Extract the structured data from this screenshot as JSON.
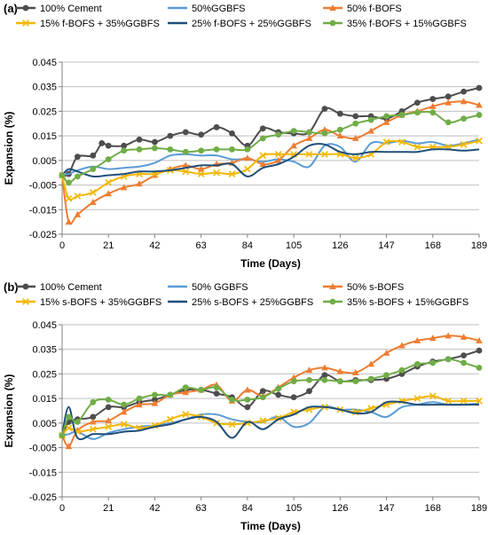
{
  "chart_data": [
    {
      "type": "line",
      "panel_label": "(a)",
      "xlabel": "Time (Days)",
      "ylabel": "Expansion (%)",
      "xlim": [
        0,
        189
      ],
      "ylim": [
        -0.025,
        0.045
      ],
      "xticks": [
        "0",
        "21",
        "42",
        "63",
        "84",
        "105",
        "126",
        "147",
        "168",
        "189"
      ],
      "yticks": [
        "-0.025",
        "-0.015",
        "-0.005",
        "0.005",
        "0.015",
        "0.025",
        "0.035",
        "0.045"
      ],
      "grid": true,
      "legend": "top",
      "series": [
        {
          "name": "100% Cement",
          "color": "#4d4d4d",
          "marker": "circle",
          "x": [
            0,
            3,
            7,
            14,
            18,
            21,
            28,
            35,
            42,
            49,
            56,
            63,
            70,
            77,
            84,
            91,
            98,
            105,
            112,
            119,
            126,
            133,
            140,
            147,
            154,
            161,
            168,
            175,
            182,
            189
          ],
          "y": [
            -0.001,
            -0.0005,
            0.0065,
            0.007,
            0.012,
            0.011,
            0.011,
            0.0135,
            0.0125,
            0.015,
            0.0165,
            0.0155,
            0.0185,
            0.016,
            0.011,
            0.018,
            0.0165,
            0.016,
            0.0165,
            0.026,
            0.024,
            0.023,
            0.023,
            0.022,
            0.025,
            0.0285,
            0.03,
            0.031,
            0.033,
            0.0345
          ]
        },
        {
          "name": "50%GGBFS",
          "color": "#5b9bd5",
          "marker": "none",
          "x": [
            0,
            3,
            7,
            14,
            21,
            28,
            35,
            42,
            49,
            56,
            63,
            70,
            77,
            84,
            91,
            98,
            105,
            112,
            119,
            126,
            133,
            140,
            147,
            154,
            161,
            168,
            175,
            182,
            189
          ],
          "y": [
            -0.001,
            -0.0005,
            0.001,
            0.0025,
            0.0015,
            0.002,
            0.0025,
            0.004,
            0.007,
            0.0075,
            0.007,
            0.007,
            0.0055,
            0.0055,
            0.0045,
            0.0055,
            0.0045,
            0.0025,
            0.011,
            0.0105,
            0.0045,
            0.012,
            0.012,
            0.013,
            0.012,
            0.0125,
            0.011,
            0.012,
            0.0135
          ]
        },
        {
          "name": "50% f-BOFS",
          "color": "#ed7d31",
          "marker": "triangle",
          "x": [
            0,
            3,
            7,
            14,
            21,
            28,
            35,
            42,
            49,
            56,
            63,
            70,
            77,
            84,
            91,
            98,
            105,
            112,
            119,
            126,
            133,
            140,
            147,
            154,
            161,
            168,
            175,
            182,
            189
          ],
          "y": [
            -0.001,
            -0.02,
            -0.017,
            -0.012,
            -0.0085,
            -0.006,
            -0.0045,
            -0.001,
            0.0015,
            0.003,
            0.0015,
            0.0035,
            0.004,
            0.006,
            0.0035,
            0.005,
            0.011,
            0.014,
            0.0175,
            0.015,
            0.014,
            0.017,
            0.0205,
            0.0235,
            0.025,
            0.027,
            0.0285,
            0.029,
            0.0275
          ]
        },
        {
          "name": "15% f-BOFS + 35%GGBFS",
          "color": "#f2b705",
          "marker": "x",
          "x": [
            0,
            3,
            7,
            14,
            21,
            28,
            35,
            42,
            49,
            56,
            63,
            70,
            77,
            84,
            91,
            98,
            105,
            112,
            119,
            126,
            133,
            140,
            147,
            154,
            161,
            168,
            175,
            182,
            189
          ],
          "y": [
            -0.001,
            -0.0105,
            -0.0095,
            -0.008,
            -0.004,
            -0.0015,
            -0.0005,
            -0.0005,
            0.001,
            0.0005,
            -0.0005,
            0.0,
            -0.0005,
            0.0015,
            0.007,
            0.0075,
            0.0075,
            0.0075,
            0.0075,
            0.0075,
            0.006,
            0.0075,
            0.0125,
            0.0125,
            0.0105,
            0.0105,
            0.0105,
            0.0115,
            0.013
          ]
        },
        {
          "name": "25% f-BOFS + 25%GGBFS",
          "color": "#1f4e79",
          "marker": "none",
          "x": [
            0,
            3,
            7,
            14,
            21,
            28,
            35,
            42,
            49,
            56,
            63,
            70,
            77,
            84,
            91,
            98,
            105,
            112,
            119,
            126,
            133,
            140,
            147,
            154,
            161,
            168,
            175,
            182,
            189
          ],
          "y": [
            -0.001,
            0.0015,
            0.0005,
            -0.0015,
            -0.001,
            -0.0005,
            0.0005,
            0.0005,
            0.001,
            0.002,
            0.003,
            0.003,
            0.0035,
            -0.0015,
            0.002,
            0.0035,
            0.0065,
            0.011,
            0.0115,
            0.0085,
            0.0075,
            0.0085,
            0.0085,
            0.0085,
            0.0085,
            0.0095,
            0.0095,
            0.009,
            0.0095
          ]
        },
        {
          "name": "35% f-BOFS + 15%GGBFS",
          "color": "#70ad47",
          "marker": "circle",
          "x": [
            0,
            3,
            7,
            14,
            21,
            28,
            35,
            42,
            49,
            56,
            63,
            70,
            77,
            84,
            91,
            98,
            105,
            112,
            119,
            126,
            133,
            140,
            147,
            154,
            161,
            168,
            175,
            182,
            189
          ],
          "y": [
            -0.001,
            -0.004,
            -0.0015,
            0.0015,
            0.0055,
            0.009,
            0.0095,
            0.01,
            0.0095,
            0.0085,
            0.009,
            0.0095,
            0.0095,
            0.0095,
            0.014,
            0.0155,
            0.017,
            0.0165,
            0.016,
            0.0175,
            0.02,
            0.0215,
            0.023,
            0.0235,
            0.0245,
            0.0245,
            0.0205,
            0.022,
            0.0235
          ]
        }
      ]
    },
    {
      "type": "line",
      "panel_label": "(b)",
      "xlabel": "Time (Days)",
      "ylabel": "Expansion (%)",
      "xlim": [
        0,
        189
      ],
      "ylim": [
        -0.025,
        0.045
      ],
      "xticks": [
        "0",
        "21",
        "42",
        "63",
        "84",
        "105",
        "126",
        "147",
        "168",
        "189"
      ],
      "yticks": [
        "-0.025",
        "-0.015",
        "-0.005",
        "0.005",
        "0.015",
        "0.025",
        "0.035",
        "0.045"
      ],
      "grid": true,
      "legend": "top",
      "series": [
        {
          "name": "100% Cement",
          "color": "#4d4d4d",
          "marker": "circle",
          "x": [
            0,
            3,
            7,
            14,
            21,
            28,
            35,
            42,
            49,
            56,
            63,
            70,
            77,
            84,
            91,
            98,
            105,
            112,
            119,
            126,
            133,
            140,
            147,
            154,
            161,
            168,
            175,
            182,
            189
          ],
          "y": [
            0.0,
            0.0055,
            0.0065,
            0.0075,
            0.0115,
            0.0115,
            0.0135,
            0.0145,
            0.0165,
            0.0185,
            0.0185,
            0.017,
            0.0155,
            0.0115,
            0.018,
            0.0165,
            0.0155,
            0.018,
            0.0245,
            0.022,
            0.0225,
            0.0225,
            0.023,
            0.025,
            0.028,
            0.03,
            0.031,
            0.0325,
            0.0345
          ]
        },
        {
          "name": "50% GGBFS",
          "color": "#5b9bd5",
          "marker": "none",
          "x": [
            0,
            3,
            7,
            14,
            21,
            28,
            35,
            42,
            49,
            56,
            63,
            70,
            77,
            84,
            91,
            98,
            105,
            112,
            119,
            126,
            133,
            140,
            147,
            154,
            161,
            168,
            175,
            182,
            189
          ],
          "y": [
            0.0,
            0.0005,
            0.0015,
            -0.0015,
            0.001,
            0.0025,
            0.0035,
            0.004,
            0.005,
            0.0065,
            0.0085,
            0.0085,
            0.0065,
            0.0055,
            0.0055,
            0.0075,
            0.0035,
            0.005,
            0.0115,
            0.0105,
            0.0105,
            0.0095,
            0.0075,
            0.0115,
            0.0125,
            0.0135,
            0.0125,
            0.0125,
            0.013
          ]
        },
        {
          "name": "50% s-BOFS",
          "color": "#ed7d31",
          "marker": "triangle",
          "x": [
            0,
            3,
            7,
            14,
            21,
            28,
            35,
            42,
            49,
            56,
            63,
            70,
            77,
            84,
            91,
            98,
            105,
            112,
            119,
            126,
            133,
            140,
            147,
            154,
            161,
            168,
            175,
            182,
            189
          ],
          "y": [
            0.0,
            -0.0045,
            0.002,
            0.0055,
            0.006,
            0.0095,
            0.0125,
            0.013,
            0.0165,
            0.0175,
            0.0185,
            0.0205,
            0.014,
            0.0185,
            0.016,
            0.0195,
            0.0235,
            0.0265,
            0.0275,
            0.026,
            0.0255,
            0.029,
            0.0335,
            0.0365,
            0.0385,
            0.0395,
            0.0405,
            0.04,
            0.0385
          ]
        },
        {
          "name": "15% s-BOFS + 35%GGBFS",
          "color": "#f2b705",
          "marker": "x",
          "x": [
            0,
            3,
            7,
            14,
            21,
            28,
            35,
            42,
            49,
            56,
            63,
            70,
            77,
            84,
            91,
            98,
            105,
            112,
            119,
            126,
            133,
            140,
            147,
            154,
            161,
            168,
            175,
            182,
            189
          ],
          "y": [
            0.0,
            0.003,
            0.0015,
            0.0025,
            0.0035,
            0.0045,
            0.003,
            0.004,
            0.0065,
            0.0085,
            0.0075,
            0.005,
            0.0045,
            0.005,
            0.006,
            0.007,
            0.0095,
            0.0105,
            0.0115,
            0.0105,
            0.0095,
            0.011,
            0.0125,
            0.014,
            0.015,
            0.016,
            0.014,
            0.014,
            0.014
          ]
        },
        {
          "name": "25% s-BOFS + 25%GGBFS",
          "color": "#1f4e79",
          "marker": "none",
          "x": [
            0,
            3,
            7,
            14,
            21,
            28,
            35,
            42,
            49,
            56,
            63,
            70,
            77,
            84,
            91,
            98,
            105,
            112,
            119,
            126,
            133,
            140,
            147,
            154,
            161,
            168,
            175,
            182,
            189
          ],
          "y": [
            0.0,
            0.0115,
            -0.001,
            0.0005,
            0.0005,
            0.0015,
            0.002,
            0.0035,
            0.0045,
            0.0065,
            0.0075,
            0.0055,
            -0.001,
            0.0055,
            0.0025,
            0.0065,
            0.0085,
            0.0115,
            0.0115,
            0.0105,
            0.009,
            0.0095,
            0.0135,
            0.0135,
            0.0125,
            0.0125,
            0.0125,
            0.0125,
            0.0125
          ]
        },
        {
          "name": "35% s-BOFS + 15%GGBFS",
          "color": "#70ad47",
          "marker": "circle",
          "x": [
            0,
            3,
            7,
            14,
            21,
            28,
            35,
            42,
            49,
            56,
            63,
            70,
            77,
            84,
            91,
            98,
            105,
            112,
            119,
            126,
            133,
            140,
            147,
            154,
            161,
            168,
            175,
            182,
            189
          ],
          "y": [
            0.0,
            0.0075,
            0.0055,
            0.0135,
            0.0145,
            0.0125,
            0.015,
            0.0165,
            0.0165,
            0.0195,
            0.0185,
            0.0195,
            0.0145,
            0.0145,
            0.0155,
            0.019,
            0.022,
            0.0225,
            0.0225,
            0.022,
            0.022,
            0.023,
            0.0245,
            0.0265,
            0.029,
            0.0295,
            0.031,
            0.0295,
            0.0275
          ]
        }
      ]
    }
  ]
}
